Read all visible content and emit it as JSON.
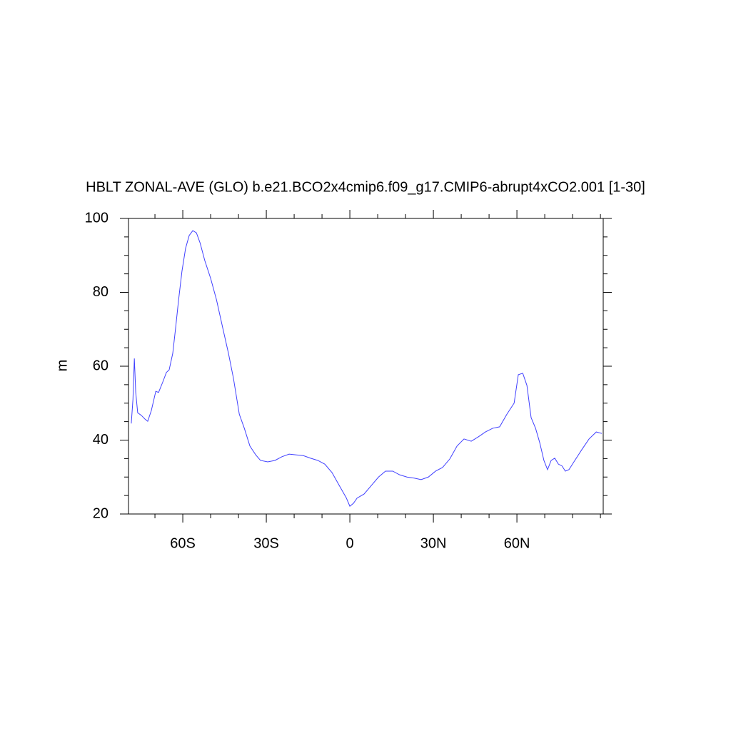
{
  "chart_data": {
    "type": "line",
    "title": "HBLT ZONAL-AVE (GLO) b.e21.BCO2x4cmip6.f09_g17.CMIP6-abrupt4xCO2.001 [1-30]",
    "y_label": "m",
    "xlim": [
      -79.5,
      91
    ],
    "ylim": [
      20,
      100
    ],
    "xticks": [
      {
        "value": -60,
        "label": "60S"
      },
      {
        "value": -30,
        "label": "30S"
      },
      0,
      {
        "value": 30,
        "label": "30N"
      },
      {
        "value": 60,
        "label": "60N"
      }
    ],
    "xminorticks": [
      -70,
      -50,
      -40,
      -20,
      -10,
      10,
      20,
      40,
      50,
      70,
      80,
      90
    ],
    "yticks": [
      20,
      40,
      60,
      80,
      100
    ],
    "yminorticks": [
      25,
      30,
      35,
      45,
      50,
      55,
      65,
      70,
      75,
      85,
      90,
      95
    ],
    "series": [
      {
        "color": "#4040ff",
        "x": [
          -78.5,
          -77.9,
          -77.4,
          -76.9,
          -76.2,
          -74.9,
          -73.6,
          -72.6,
          -71.3,
          -69.7,
          -68.7,
          -67.2,
          -65.9,
          -64.9,
          -63.6,
          -62.6,
          -61.5,
          -60.3,
          -59,
          -57.7,
          -56.4,
          -55.1,
          -53.8,
          -52.1,
          -50,
          -47.9,
          -45.6,
          -43.6,
          -41.8,
          -39.7,
          -37.9,
          -35.9,
          -33.8,
          -32.1,
          -29.5,
          -26.9,
          -24.4,
          -21.8,
          -19.2,
          -16.7,
          -14.1,
          -11.5,
          -9,
          -6.4,
          -3.8,
          -1.3,
          0,
          1.3,
          2.6,
          5.1,
          7.7,
          10.3,
          12.8,
          15.4,
          17.9,
          20.5,
          23.1,
          25.6,
          28.2,
          30.8,
          33.3,
          35.9,
          38.5,
          41,
          43.6,
          46.2,
          48.7,
          51.3,
          53.8,
          56.4,
          59,
          60.5,
          62.1,
          63.6,
          65.1,
          66.7,
          68.2,
          69.7,
          71,
          72.3,
          73.6,
          74.9,
          76.2,
          77.4,
          78.7,
          80.8,
          83.3,
          85.9,
          88.5,
          90.5
        ],
        "values": [
          44.5,
          51,
          62.1,
          52.9,
          47.4,
          46.7,
          45.7,
          45.1,
          48,
          53.2,
          52.9,
          55.7,
          58.3,
          59,
          63.5,
          70.2,
          78,
          85.7,
          91.9,
          95.4,
          96.7,
          96.1,
          93.4,
          88.6,
          83.8,
          78,
          70.2,
          63.5,
          56.7,
          47,
          43.2,
          38.4,
          36,
          34.5,
          34.1,
          34.5,
          35.5,
          36.2,
          36,
          35.8,
          35.1,
          34.5,
          33.5,
          31.2,
          27.7,
          24.4,
          22.1,
          22.9,
          24.3,
          25.4,
          27.7,
          30,
          31.6,
          31.6,
          30.6,
          30,
          29.7,
          29.3,
          30,
          31.6,
          32.6,
          34.9,
          38.4,
          40.3,
          39.7,
          40.9,
          42.2,
          43.2,
          43.6,
          47,
          50,
          57.7,
          58.1,
          54.8,
          46.1,
          43.2,
          39.3,
          34.5,
          32,
          34.5,
          35.1,
          33.5,
          33,
          31.6,
          32,
          34.5,
          37.4,
          40.3,
          42.2,
          41.8
        ]
      }
    ]
  }
}
